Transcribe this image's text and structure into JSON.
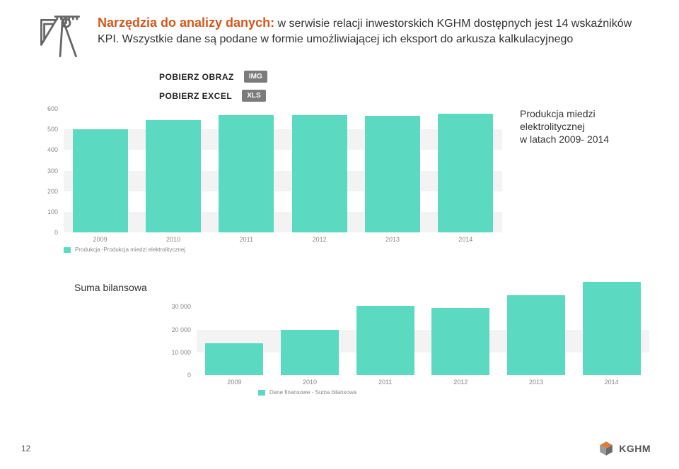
{
  "header": {
    "title": "Narzędzia do analizy danych:",
    "body1": " w serwisie relacji inwestorskich KGHM dostępnych jest 14 wskaźników KPI. Wszystkie dane są podane w formie umożliwiającej ich eksport do arkusza kalkulacyjnego",
    "title_color": "#d3581d",
    "icon_stroke": "#666666"
  },
  "download": {
    "img_label": "POBIERZ OBRAZ",
    "img_badge": "IMG",
    "xls_label": "POBIERZ EXCEL",
    "xls_badge": "XLS",
    "badge_bg": "#7b7b7b"
  },
  "chart1": {
    "type": "bar",
    "categories": [
      "2009",
      "2010",
      "2011",
      "2012",
      "2013",
      "2014"
    ],
    "values": [
      500,
      545,
      570,
      570,
      565,
      575
    ],
    "ylim": [
      0,
      600
    ],
    "yticks": [
      0,
      100,
      200,
      300,
      400,
      500,
      600
    ],
    "bar_color": "#5bd9c1",
    "grid_color": "#f3f3f3",
    "legend": "Produkcja -Produkcja miedzi elektrolitycznej",
    "side_note_l1": "Produkcja miedzi",
    "side_note_l2": "elektrolitycznej",
    "side_note_l3": "w latach 2009- 2014",
    "label_fontsize": 9,
    "label_color": "#888888"
  },
  "chart2": {
    "title": "Suma bilansowa",
    "type": "bar",
    "categories": [
      "2009",
      "2010",
      "2011",
      "2012",
      "2013",
      "2014"
    ],
    "values": [
      14000,
      20000,
      30500,
      29500,
      35000,
      41000
    ],
    "ylim": [
      0,
      41000
    ],
    "yticks": [
      0,
      10000,
      20000,
      30000
    ],
    "ytick_labels": [
      "0",
      "10 000",
      "20 000",
      "30 000"
    ],
    "bar_color": "#5bd9c1",
    "grid_color": "#f3f3f3",
    "legend": "Dane finansowe - Suma bilansowa",
    "label_fontsize": 9,
    "label_color": "#888888"
  },
  "footer": {
    "page_number": "12",
    "logo_text": "KGHM",
    "logo_top": "#d97f3d",
    "logo_bottom": "#7a7a7a"
  }
}
